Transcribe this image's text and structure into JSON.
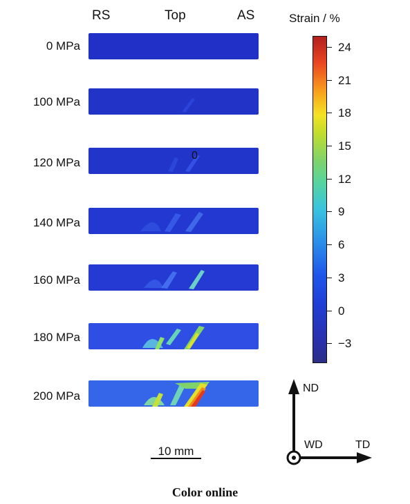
{
  "header": {
    "left": "RS",
    "center": "Top",
    "right": "AS"
  },
  "rows": [
    {
      "label": "0 MPa"
    },
    {
      "label": "100 MPa"
    },
    {
      "label": "120 MPa",
      "annotation": "0"
    },
    {
      "label": "140 MPa"
    },
    {
      "label": "160 MPa"
    },
    {
      "label": "180 MPa"
    },
    {
      "label": "200 MPa"
    }
  ],
  "colorbar": {
    "title": "Strain / %",
    "ticks": [
      "24",
      "21",
      "18",
      "15",
      "12",
      "9",
      "6",
      "3",
      "0",
      "−3"
    ],
    "min": -4.8,
    "max": 25
  },
  "scale_bar": {
    "label": "10 mm"
  },
  "axes": {
    "vertical": "ND",
    "horizontal": "TD",
    "out_of_plane": "WD"
  },
  "caption": "Color online",
  "colors": {
    "base": "#1f2ec4",
    "low": "#3a5ff0",
    "mid": "#59d2a0",
    "high": "#e63a1e"
  }
}
